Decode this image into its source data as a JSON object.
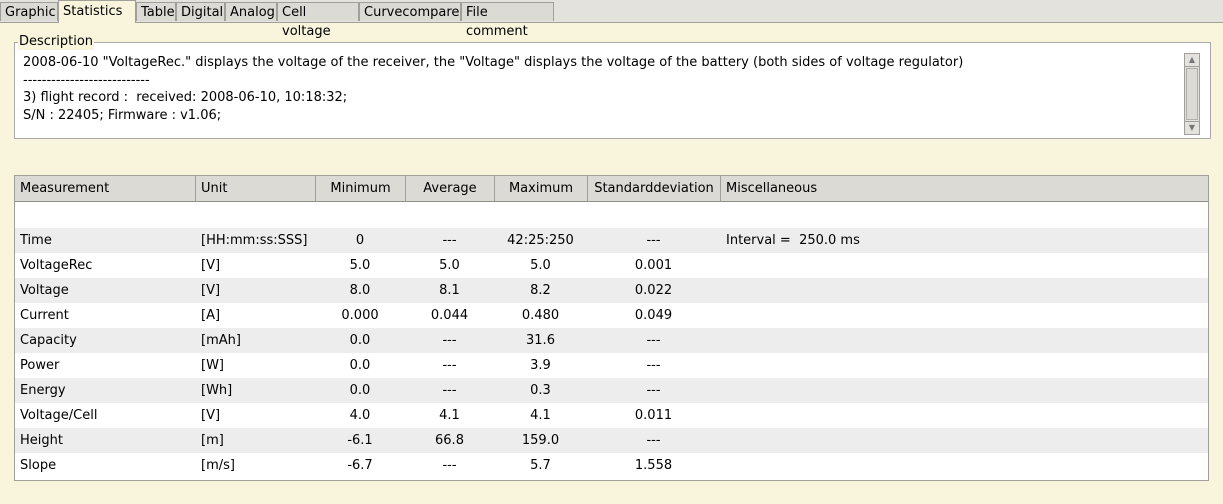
{
  "tabs": [
    "Graphic",
    "Statistics",
    "Table",
    "Digital",
    "Analog",
    "Cell voltage",
    "Curvecompare",
    "File comment"
  ],
  "selected_tab": "Statistics",
  "description": {
    "label": "Description",
    "lines": [
      "2008-06-10 \"VoltageRec.\" displays the voltage of the receiver, the \"Voltage\" displays the voltage of the battery (both sides of voltage regulator)",
      "---------------------------",
      "3) flight record :  received: 2008-06-10, 10:18:32;",
      "S/N : 22405; Firmware : v1.06;"
    ]
  },
  "table": {
    "headers": [
      "Measurement",
      "Unit",
      "Minimum",
      "Average",
      "Maximum",
      "Standarddeviation",
      "Miscellaneous"
    ],
    "rows": [
      [
        "Time",
        "[HH:mm:ss:SSS]",
        "0",
        "---",
        "42:25:250",
        "---",
        "Interval =  250.0 ms"
      ],
      [
        "VoltageRec",
        "[V]",
        "5.0",
        "5.0",
        "5.0",
        "0.001"
      ],
      [
        "Voltage",
        "[V]",
        "8.0",
        "8.1",
        "8.2",
        "0.022"
      ],
      [
        "Current",
        "[A]",
        "0.000",
        "0.044",
        "0.480",
        "0.049"
      ],
      [
        "Capacity",
        "[mAh]",
        "0.0",
        "---",
        "31.6",
        "---"
      ],
      [
        "Power",
        "[W]",
        "0.0",
        "---",
        "3.9",
        "---"
      ],
      [
        "Energy",
        "[Wh]",
        "0.0",
        "---",
        "0.3",
        "---"
      ],
      [
        "Voltage/Cell",
        "[V]",
        "4.0",
        "4.1",
        "4.1",
        "0.011"
      ],
      [
        "Height",
        "[m]",
        "-6.1",
        "66.8",
        "159.0",
        "---"
      ],
      [
        "Slope",
        "[m/s]",
        "-6.7",
        "---",
        "5.7",
        "1.558"
      ]
    ]
  }
}
